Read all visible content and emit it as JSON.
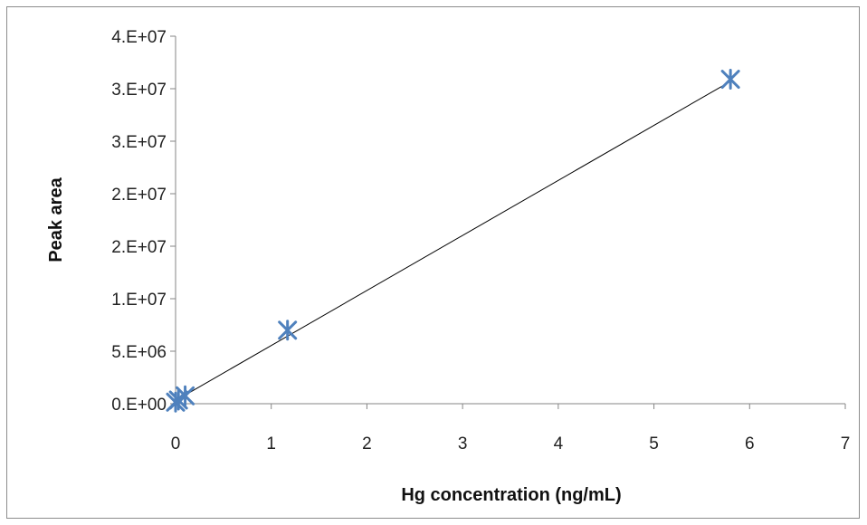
{
  "chart_data": {
    "type": "scatter",
    "title": "",
    "xlabel": "Hg concentration (ng/mL)",
    "ylabel": "Peak area",
    "xlim": [
      0,
      7
    ],
    "ylim": [
      0,
      35000000
    ],
    "x_ticks": [
      "0",
      "1",
      "2",
      "3",
      "4",
      "5",
      "6",
      "7"
    ],
    "y_ticks": [
      "0.E+00",
      "5.E+06",
      "1.E+07",
      "2.E+07",
      "2.E+07",
      "3.E+07",
      "3.E+07",
      "4.E+07"
    ],
    "grid": false,
    "legend": "none",
    "series": [
      {
        "marker": "asterisk",
        "color": "#4f81bd",
        "x": [
          0,
          0.03,
          0.1,
          1.17,
          5.8
        ],
        "y": [
          150000,
          350000,
          750000,
          7000000,
          30900000
        ]
      }
    ],
    "trendline": {
      "type": "linear",
      "color": "#000000",
      "x": [
        0,
        5.8
      ],
      "y": [
        300000,
        30700000
      ]
    }
  }
}
